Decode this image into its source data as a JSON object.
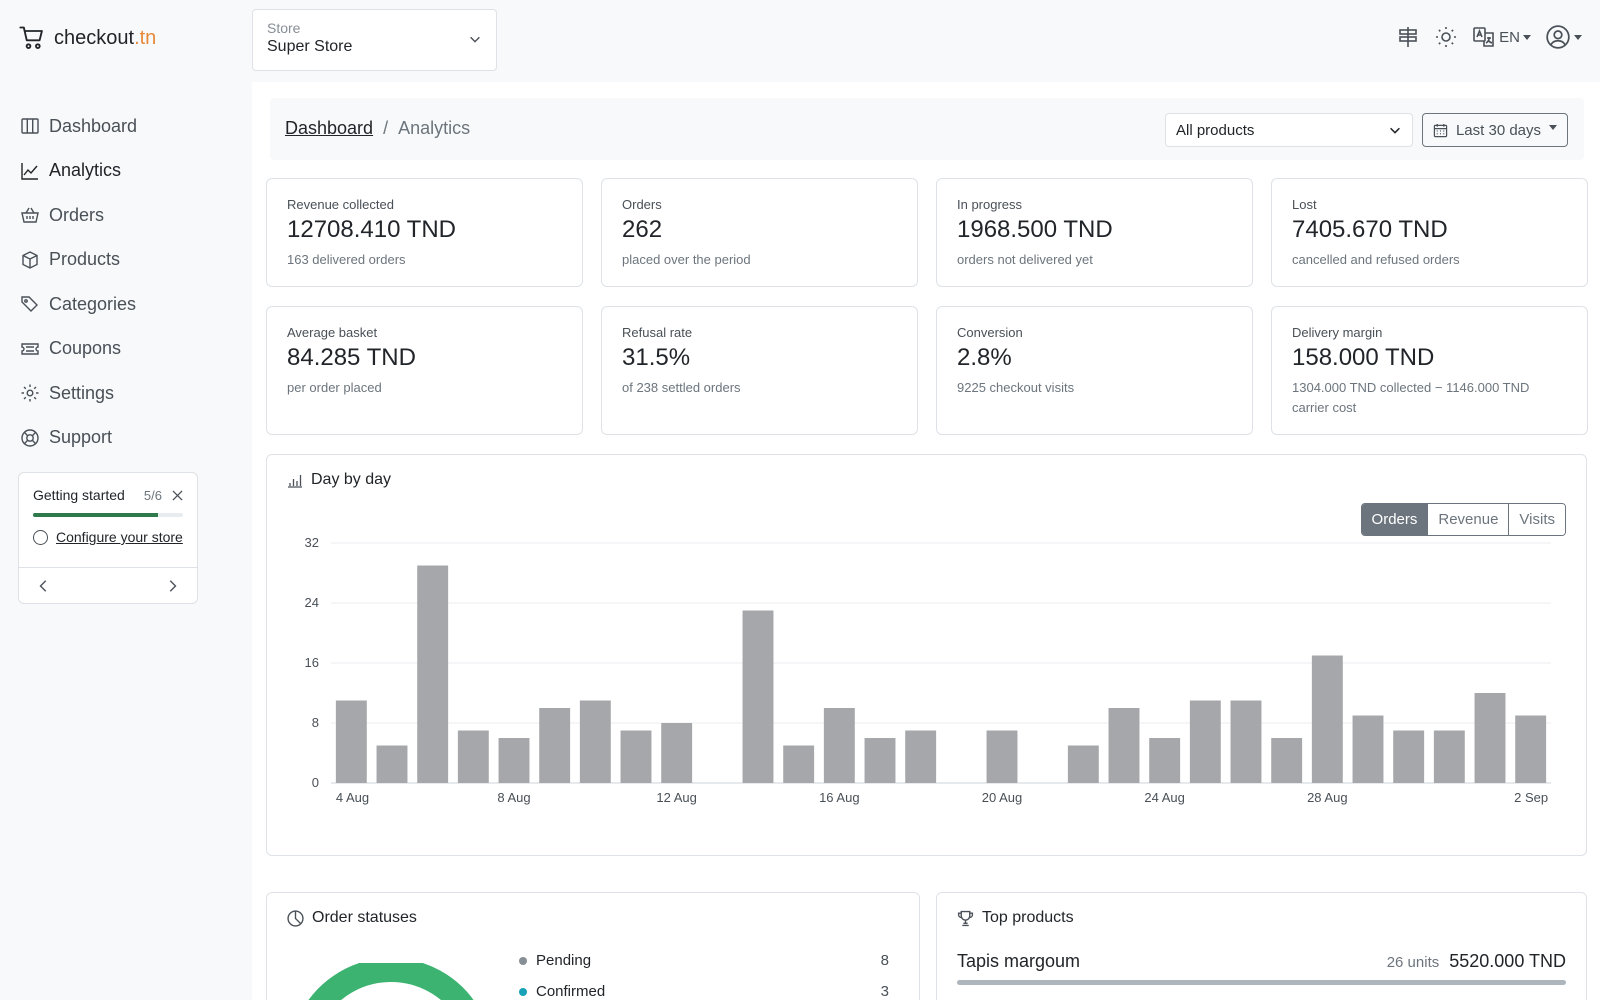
{
  "app": {
    "logo_main": "checkout",
    "logo_tld": ".tn"
  },
  "store": {
    "label": "Store",
    "value": "Super Store"
  },
  "header": {
    "language": "EN"
  },
  "sidebar": {
    "items": [
      {
        "label": "Dashboard",
        "icon": "columns-icon"
      },
      {
        "label": "Analytics",
        "icon": "chart-line-icon",
        "active": true
      },
      {
        "label": "Orders",
        "icon": "basket-icon"
      },
      {
        "label": "Products",
        "icon": "box-icon"
      },
      {
        "label": "Categories",
        "icon": "tags-icon"
      },
      {
        "label": "Coupons",
        "icon": "ticket-icon"
      },
      {
        "label": "Settings",
        "icon": "gear-icon"
      },
      {
        "label": "Support",
        "icon": "lifebuoy-icon"
      }
    ]
  },
  "getting_started": {
    "title": "Getting started",
    "count": "5/6",
    "progress": 0.83,
    "task": "Configure your store"
  },
  "breadcrumb": {
    "root": "Dashboard",
    "sep": "/",
    "current": "Analytics"
  },
  "filters": {
    "products": "All products",
    "range": "Last 30 days"
  },
  "stats": [
    {
      "label": "Revenue collected",
      "value": "12708.410 TND",
      "sub": "163 delivered orders"
    },
    {
      "label": "Orders",
      "value": "262",
      "sub": "placed over the period"
    },
    {
      "label": "In progress",
      "value": "1968.500 TND",
      "sub": "orders not delivered yet"
    },
    {
      "label": "Lost",
      "value": "7405.670 TND",
      "sub": "cancelled and refused orders"
    },
    {
      "label": "Average basket",
      "value": "84.285 TND",
      "sub": "per order placed"
    },
    {
      "label": "Refusal rate",
      "value": "31.5%",
      "sub": "of 238 settled orders"
    },
    {
      "label": "Conversion",
      "value": "2.8%",
      "sub": "9225 checkout visits"
    },
    {
      "label": "Delivery margin",
      "value": "158.000 TND",
      "sub": "1304.000 TND collected − 1146.000 TND carrier cost"
    }
  ],
  "day_by_day": {
    "title": "Day by day",
    "tabs": [
      "Orders",
      "Revenue",
      "Visits"
    ],
    "active_tab": "Orders"
  },
  "chart_data": {
    "type": "bar",
    "categories": [
      "4 Aug",
      "5 Aug",
      "6 Aug",
      "7 Aug",
      "8 Aug",
      "9 Aug",
      "10 Aug",
      "11 Aug",
      "12 Aug",
      "13 Aug",
      "14 Aug",
      "15 Aug",
      "16 Aug",
      "17 Aug",
      "18 Aug",
      "19 Aug",
      "20 Aug",
      "21 Aug",
      "22 Aug",
      "23 Aug",
      "24 Aug",
      "25 Aug",
      "26 Aug",
      "27 Aug",
      "28 Aug",
      "29 Aug",
      "30 Aug",
      "31 Aug",
      "1 Sep",
      "2 Sep"
    ],
    "values": [
      11,
      5,
      29,
      7,
      6,
      10,
      11,
      7,
      8,
      0,
      23,
      5,
      10,
      6,
      7,
      0,
      7,
      0,
      5,
      10,
      6,
      11,
      11,
      6,
      17,
      9,
      7,
      7,
      12,
      9
    ],
    "x_tick_labels": [
      "4 Aug",
      "8 Aug",
      "12 Aug",
      "16 Aug",
      "20 Aug",
      "24 Aug",
      "28 Aug",
      "2 Sep"
    ],
    "y_ticks": [
      0,
      8,
      16,
      24,
      32
    ],
    "ylim": [
      0,
      32
    ],
    "grid": true,
    "color": "#a5a7ab"
  },
  "order_statuses": {
    "title": "Order statuses",
    "items": [
      {
        "label": "Pending",
        "count": "8",
        "color": "#868e96"
      },
      {
        "label": "Confirmed",
        "count": "3",
        "color": "#17a2b8"
      }
    ],
    "donut_color": "#3cb371"
  },
  "top_products": {
    "title": "Top products",
    "items": [
      {
        "name": "Tapis margoum",
        "units": "26 units",
        "amount": "5520.000 TND",
        "share": 1.0
      }
    ]
  }
}
